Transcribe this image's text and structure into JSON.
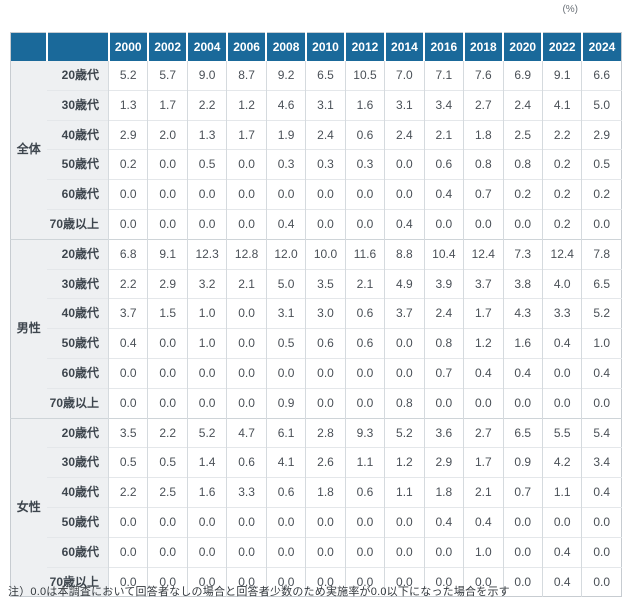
{
  "unit_label": "(%)",
  "footnote": "注）0.0は本調査において回答者なしの場合と回答者少数のため実施率が0.0以下になった場合を示す",
  "colors": {
    "header_bg": "#1a699a",
    "header_text": "#ffffff",
    "label_column_bg": "#eef0f2",
    "label_text": "#3d454d",
    "value_text": "#4a5057",
    "column_border": "#d5dade",
    "row_border": "#e4e7ea",
    "group_border": "#ced4d8",
    "outer_border": "#c7ccd1"
  },
  "table": {
    "year_headers": [
      "2000",
      "2002",
      "2004",
      "2006",
      "2008",
      "2010",
      "2012",
      "2014",
      "2016",
      "2018",
      "2020",
      "2022",
      "2024"
    ],
    "groups": [
      {
        "label": "全体",
        "rows": [
          {
            "label": "20歳代",
            "values": [
              "5.2",
              "5.7",
              "9.0",
              "8.7",
              "9.2",
              "6.5",
              "10.5",
              "7.0",
              "7.1",
              "7.6",
              "6.9",
              "9.1",
              "6.6"
            ]
          },
          {
            "label": "30歳代",
            "values": [
              "1.3",
              "1.7",
              "2.2",
              "1.2",
              "4.6",
              "3.1",
              "1.6",
              "3.1",
              "3.4",
              "2.7",
              "2.4",
              "4.1",
              "5.0"
            ]
          },
          {
            "label": "40歳代",
            "values": [
              "2.9",
              "2.0",
              "1.3",
              "1.7",
              "1.9",
              "2.4",
              "0.6",
              "2.4",
              "2.1",
              "1.8",
              "2.5",
              "2.2",
              "2.9"
            ]
          },
          {
            "label": "50歳代",
            "values": [
              "0.2",
              "0.0",
              "0.5",
              "0.0",
              "0.3",
              "0.3",
              "0.3",
              "0.0",
              "0.6",
              "0.8",
              "0.8",
              "0.2",
              "0.5"
            ]
          },
          {
            "label": "60歳代",
            "values": [
              "0.0",
              "0.0",
              "0.0",
              "0.0",
              "0.0",
              "0.0",
              "0.0",
              "0.0",
              "0.4",
              "0.7",
              "0.2",
              "0.2",
              "0.2"
            ]
          },
          {
            "label": "70歳以上",
            "values": [
              "0.0",
              "0.0",
              "0.0",
              "0.0",
              "0.4",
              "0.0",
              "0.0",
              "0.4",
              "0.0",
              "0.0",
              "0.0",
              "0.2",
              "0.0"
            ]
          }
        ]
      },
      {
        "label": "男性",
        "rows": [
          {
            "label": "20歳代",
            "values": [
              "6.8",
              "9.1",
              "12.3",
              "12.8",
              "12.0",
              "10.0",
              "11.6",
              "8.8",
              "10.4",
              "12.4",
              "7.3",
              "12.4",
              "7.8"
            ]
          },
          {
            "label": "30歳代",
            "values": [
              "2.2",
              "2.9",
              "3.2",
              "2.1",
              "5.0",
              "3.5",
              "2.1",
              "4.9",
              "3.9",
              "3.7",
              "3.8",
              "4.0",
              "6.5"
            ]
          },
          {
            "label": "40歳代",
            "values": [
              "3.7",
              "1.5",
              "1.0",
              "0.0",
              "3.1",
              "3.0",
              "0.6",
              "3.7",
              "2.4",
              "1.7",
              "4.3",
              "3.3",
              "5.2"
            ]
          },
          {
            "label": "50歳代",
            "values": [
              "0.4",
              "0.0",
              "1.0",
              "0.0",
              "0.5",
              "0.6",
              "0.6",
              "0.0",
              "0.8",
              "1.2",
              "1.6",
              "0.4",
              "1.0"
            ]
          },
          {
            "label": "60歳代",
            "values": [
              "0.0",
              "0.0",
              "0.0",
              "0.0",
              "0.0",
              "0.0",
              "0.0",
              "0.0",
              "0.7",
              "0.4",
              "0.4",
              "0.0",
              "0.4"
            ]
          },
          {
            "label": "70歳以上",
            "values": [
              "0.0",
              "0.0",
              "0.0",
              "0.0",
              "0.9",
              "0.0",
              "0.0",
              "0.8",
              "0.0",
              "0.0",
              "0.0",
              "0.0",
              "0.0"
            ]
          }
        ]
      },
      {
        "label": "女性",
        "rows": [
          {
            "label": "20歳代",
            "values": [
              "3.5",
              "2.2",
              "5.2",
              "4.7",
              "6.1",
              "2.8",
              "9.3",
              "5.2",
              "3.6",
              "2.7",
              "6.5",
              "5.5",
              "5.4"
            ]
          },
          {
            "label": "30歳代",
            "values": [
              "0.5",
              "0.5",
              "1.4",
              "0.6",
              "4.1",
              "2.6",
              "1.1",
              "1.2",
              "2.9",
              "1.7",
              "0.9",
              "4.2",
              "3.4"
            ]
          },
          {
            "label": "40歳代",
            "values": [
              "2.2",
              "2.5",
              "1.6",
              "3.3",
              "0.6",
              "1.8",
              "0.6",
              "1.1",
              "1.8",
              "2.1",
              "0.7",
              "1.1",
              "0.4"
            ]
          },
          {
            "label": "50歳代",
            "values": [
              "0.0",
              "0.0",
              "0.0",
              "0.0",
              "0.0",
              "0.0",
              "0.0",
              "0.0",
              "0.4",
              "0.4",
              "0.0",
              "0.0",
              "0.0"
            ]
          },
          {
            "label": "60歳代",
            "values": [
              "0.0",
              "0.0",
              "0.0",
              "0.0",
              "0.0",
              "0.0",
              "0.0",
              "0.0",
              "0.0",
              "1.0",
              "0.0",
              "0.4",
              "0.0"
            ]
          },
          {
            "label": "70歳以上",
            "values": [
              "0.0",
              "0.0",
              "0.0",
              "0.0",
              "0.0",
              "0.0",
              "0.0",
              "0.0",
              "0.0",
              "0.0",
              "0.0",
              "0.4",
              "0.0"
            ]
          }
        ]
      }
    ]
  }
}
